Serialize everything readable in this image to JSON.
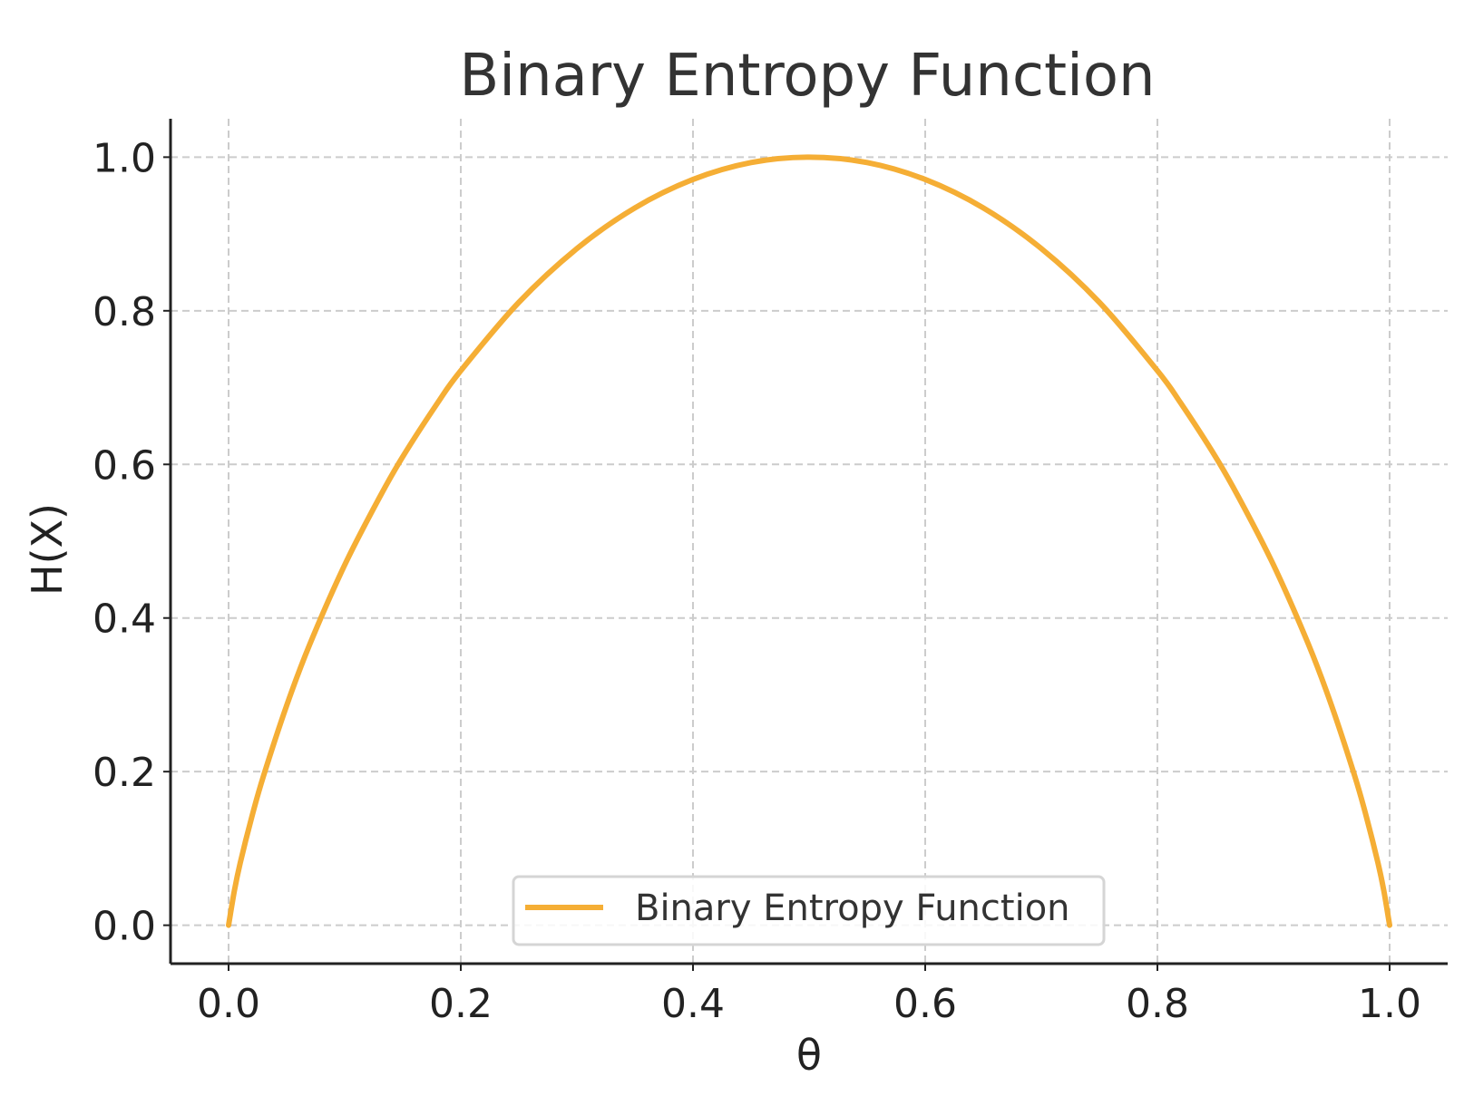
{
  "chart_data": {
    "type": "line",
    "title": "Binary Entropy Function",
    "xlabel": "θ",
    "ylabel": "H(X)",
    "xlim": [
      -0.05,
      1.05
    ],
    "ylim": [
      -0.05,
      1.05
    ],
    "x_ticks": [
      "0.0",
      "0.2",
      "0.4",
      "0.6",
      "0.8",
      "1.0"
    ],
    "y_ticks": [
      "0.0",
      "0.2",
      "0.4",
      "0.6",
      "0.8",
      "1.0"
    ],
    "grid": true,
    "legend_position": "lower-center",
    "series": [
      {
        "name": "Binary Entropy Function",
        "color": "#F5AE35",
        "x": [
          0.0,
          0.005,
          0.01,
          0.02,
          0.03,
          0.05,
          0.07,
          0.1,
          0.13,
          0.15,
          0.18,
          0.2,
          0.25,
          0.3,
          0.35,
          0.4,
          0.45,
          0.5,
          0.55,
          0.6,
          0.65,
          0.7,
          0.75,
          0.8,
          0.82,
          0.85,
          0.87,
          0.9,
          0.93,
          0.95,
          0.97,
          0.98,
          0.99,
          0.995,
          1.0
        ],
        "y": [
          0.0,
          0.045,
          0.081,
          0.141,
          0.194,
          0.286,
          0.366,
          0.469,
          0.557,
          0.61,
          0.68,
          0.722,
          0.811,
          0.881,
          0.934,
          0.971,
          0.993,
          1.0,
          0.993,
          0.971,
          0.934,
          0.881,
          0.811,
          0.722,
          0.68,
          0.61,
          0.557,
          0.469,
          0.366,
          0.286,
          0.194,
          0.141,
          0.081,
          0.045,
          0.0
        ]
      }
    ]
  }
}
